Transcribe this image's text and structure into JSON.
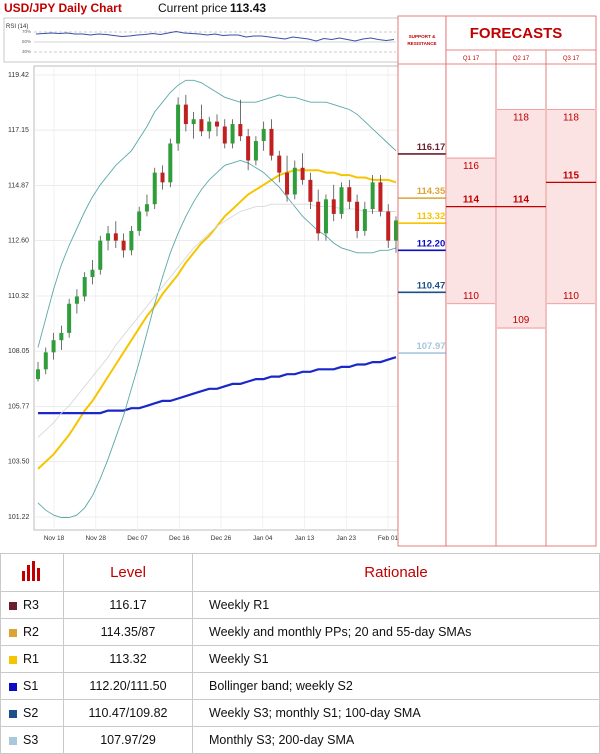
{
  "header": {
    "title": "USD/JPY Daily Chart",
    "price_label": "Current price",
    "price_value": "113.43"
  },
  "rsi": {
    "label": "RSI (14)",
    "levels": [
      "70%",
      "50%",
      "30%"
    ]
  },
  "support_header": "SUPPORT & RESISTANCE",
  "forecasts": {
    "title": "FORECASTS",
    "columns": [
      "Q1 17",
      "Q2 17",
      "Q3 17"
    ],
    "values": {
      "Q1 17": [
        116,
        114,
        110
      ],
      "Q2 17": [
        118,
        114,
        109
      ],
      "Q3 17": [
        118,
        115,
        110
      ]
    }
  },
  "colors": {
    "R3": "#6b1f2e",
    "R2": "#dba534",
    "R1": "#f6c500",
    "S1": "#0b0bc6",
    "S2": "#1d4f8a",
    "S3": "#a7c8dd",
    "accent": "#c00000"
  },
  "chart_data": {
    "type": "candlestick",
    "title": "USD/JPY Daily Chart",
    "yticks": [
      119.42,
      117.15,
      114.87,
      112.6,
      110.32,
      108.05,
      105.77,
      103.5,
      101.22
    ],
    "ylim": [
      101.22,
      119.42
    ],
    "xticks": [
      "Nov 18",
      "Nov 28",
      "Dec 07",
      "Dec 16",
      "Dec 26",
      "Jan 04",
      "Jan 13",
      "Jan 23",
      "Feb 01"
    ],
    "ohlc": [
      [
        106.9,
        107.6,
        106.8,
        107.3
      ],
      [
        107.3,
        108.2,
        107.1,
        108.0
      ],
      [
        108.0,
        108.8,
        107.7,
        108.5
      ],
      [
        108.5,
        109.1,
        108.1,
        108.8
      ],
      [
        108.8,
        110.2,
        108.6,
        110.0
      ],
      [
        110.0,
        110.6,
        109.6,
        110.3
      ],
      [
        110.3,
        111.3,
        110.1,
        111.1
      ],
      [
        111.1,
        111.8,
        110.8,
        111.4
      ],
      [
        111.4,
        112.8,
        111.2,
        112.6
      ],
      [
        112.6,
        113.2,
        112.2,
        112.9
      ],
      [
        112.9,
        113.4,
        112.3,
        112.6
      ],
      [
        112.6,
        112.9,
        111.9,
        112.2
      ],
      [
        112.2,
        113.2,
        112.0,
        113.0
      ],
      [
        113.0,
        114.0,
        112.8,
        113.8
      ],
      [
        113.8,
        114.5,
        113.6,
        114.1
      ],
      [
        114.1,
        115.6,
        113.9,
        115.4
      ],
      [
        115.4,
        115.7,
        114.7,
        115.0
      ],
      [
        115.0,
        116.8,
        114.8,
        116.6
      ],
      [
        116.6,
        118.5,
        116.3,
        118.2
      ],
      [
        118.2,
        118.6,
        117.1,
        117.4
      ],
      [
        117.4,
        117.9,
        116.8,
        117.6
      ],
      [
        117.6,
        118.2,
        116.9,
        117.1
      ],
      [
        117.1,
        117.7,
        116.8,
        117.5
      ],
      [
        117.5,
        117.8,
        116.9,
        117.3
      ],
      [
        117.3,
        117.6,
        116.4,
        116.6
      ],
      [
        116.6,
        117.6,
        116.4,
        117.4
      ],
      [
        117.4,
        118.4,
        116.7,
        116.9
      ],
      [
        116.9,
        117.2,
        115.5,
        115.9
      ],
      [
        115.9,
        116.9,
        115.7,
        116.7
      ],
      [
        116.7,
        117.5,
        116.3,
        117.2
      ],
      [
        117.2,
        117.6,
        115.9,
        116.1
      ],
      [
        116.1,
        116.3,
        115.0,
        115.4
      ],
      [
        115.4,
        116.1,
        114.2,
        114.5
      ],
      [
        114.5,
        115.9,
        114.3,
        115.6
      ],
      [
        115.6,
        116.2,
        114.9,
        115.1
      ],
      [
        115.1,
        115.4,
        113.9,
        114.2
      ],
      [
        114.2,
        114.7,
        112.6,
        112.9
      ],
      [
        112.9,
        114.5,
        112.6,
        114.3
      ],
      [
        114.3,
        114.9,
        113.4,
        113.7
      ],
      [
        113.7,
        115.0,
        113.5,
        114.8
      ],
      [
        114.8,
        115.1,
        113.9,
        114.2
      ],
      [
        114.2,
        114.5,
        112.7,
        113.0
      ],
      [
        113.0,
        114.2,
        112.8,
        113.9
      ],
      [
        113.9,
        115.3,
        113.7,
        115.0
      ],
      [
        115.0,
        115.3,
        113.6,
        113.8
      ],
      [
        113.8,
        114.1,
        112.3,
        112.6
      ],
      [
        112.6,
        113.6,
        112.1,
        113.43
      ]
    ],
    "series": [
      {
        "name": "20-day SMA",
        "values": [
          103.2,
          103.5,
          103.8,
          104.2,
          104.6,
          105.1,
          105.6,
          106.0,
          106.5,
          107.0,
          107.5,
          108.0,
          108.5,
          109.0,
          109.5,
          109.9,
          110.4,
          110.8,
          111.2,
          111.7,
          112.1,
          112.5,
          112.8,
          113.2,
          113.6,
          113.9,
          114.2,
          114.5,
          114.7,
          114.9,
          115.1,
          115.3,
          115.4,
          115.5,
          115.5,
          115.5,
          115.5,
          115.4,
          115.4,
          115.3,
          115.3,
          115.2,
          115.2,
          115.1,
          115.1,
          115.1,
          115.0
        ],
        "color": "#f6c500"
      },
      {
        "name": "100-day SMA",
        "values": [
          105.5,
          105.5,
          105.5,
          105.5,
          105.5,
          105.5,
          105.5,
          105.5,
          105.5,
          105.6,
          105.6,
          105.6,
          105.7,
          105.7,
          105.8,
          105.9,
          106.0,
          106.0,
          106.1,
          106.2,
          106.3,
          106.4,
          106.5,
          106.5,
          106.6,
          106.7,
          106.7,
          106.8,
          106.9,
          106.9,
          107.0,
          107.0,
          107.1,
          107.1,
          107.2,
          107.2,
          107.3,
          107.3,
          107.3,
          107.4,
          107.4,
          107.5,
          107.5,
          107.6,
          107.6,
          107.7,
          107.8
        ],
        "color": "#1a27c9"
      },
      {
        "name": "Bollinger upper",
        "values": [
          108.2,
          109.4,
          110.6,
          111.6,
          112.4,
          113.1,
          113.8,
          114.4,
          114.9,
          115.3,
          115.7,
          116.0,
          116.3,
          116.8,
          117.3,
          117.9,
          118.3,
          118.7,
          119.0,
          119.2,
          119.2,
          119.1,
          118.9,
          118.7,
          118.5,
          118.4,
          118.3,
          118.3,
          118.3,
          118.4,
          118.5,
          118.6,
          118.5,
          118.5,
          118.4,
          118.3,
          118.3,
          118.3,
          118.2,
          118.1,
          118.0,
          117.8,
          117.5,
          117.2,
          116.9,
          116.6,
          116.3
        ],
        "color": "#5aa8a8"
      },
      {
        "name": "Bollinger lower",
        "values": [
          101.8,
          101.5,
          101.3,
          101.2,
          101.2,
          101.3,
          101.6,
          102.1,
          102.8,
          103.6,
          104.5,
          105.4,
          106.5,
          107.6,
          108.8,
          110.0,
          111.1,
          112.1,
          112.9,
          113.6,
          114.2,
          114.7,
          115.1,
          115.4,
          115.7,
          115.8,
          115.9,
          115.8,
          115.6,
          115.4,
          115.1,
          114.8,
          114.4,
          114.0,
          113.6,
          113.3,
          113.0,
          112.8,
          112.5,
          112.3,
          112.2,
          112.1,
          112.1,
          112.1,
          112.2,
          112.2,
          112.3
        ],
        "color": "#5aa8a8"
      },
      {
        "name": "55-day SMA",
        "values": [
          104.5,
          104.8,
          105.1,
          105.5,
          105.8,
          106.2,
          106.6,
          107.0,
          107.4,
          107.8,
          108.3,
          108.7,
          109.1,
          109.5,
          109.9,
          110.3,
          110.7,
          111.1,
          111.5,
          111.9,
          112.3,
          112.6,
          112.9,
          113.2,
          113.4,
          113.6,
          113.8,
          113.9,
          114.0,
          114.0,
          114.1,
          114.1,
          114.1,
          114.1,
          114.1,
          114.1,
          114.0,
          114.0,
          114.0,
          113.9,
          113.9,
          113.9,
          113.8,
          113.8,
          113.8,
          113.8,
          113.8
        ],
        "color": "#d8d8d8"
      }
    ],
    "rsi_values": [
      66,
      67,
      68,
      67,
      68,
      66,
      66,
      64,
      66,
      65,
      63,
      61,
      62,
      64,
      65,
      67,
      65,
      68,
      71,
      68,
      67,
      66,
      64,
      66,
      63,
      64,
      64,
      60,
      62,
      62,
      60,
      58,
      56,
      60,
      58,
      56,
      52,
      57,
      55,
      58,
      55,
      52,
      56,
      58,
      55,
      53,
      55
    ]
  },
  "levels": [
    {
      "name": "R3",
      "value": "116.17",
      "level": "116.17",
      "rationale": "Weekly R1"
    },
    {
      "name": "R2",
      "value": "114.35",
      "level": "114.35/87",
      "rationale": "Weekly and monthly PPs; 20 and 55-day SMAs"
    },
    {
      "name": "R1",
      "value": "113.32",
      "level": "113.32",
      "rationale": "Weekly S1"
    },
    {
      "name": "S1",
      "value": "112.20",
      "level": "112.20/111.50",
      "rationale": "Bollinger band; weekly S2"
    },
    {
      "name": "S2",
      "value": "110.47",
      "level": "110.47/109.82",
      "rationale": "Weekly S3; monthly S1; 100-day SMA"
    },
    {
      "name": "S3",
      "value": "107.97",
      "level": "107.97/29",
      "rationale": "Monthly S3; 200-day SMA"
    }
  ],
  "table": {
    "col_level": "Level",
    "col_rationale": "Rationale"
  }
}
